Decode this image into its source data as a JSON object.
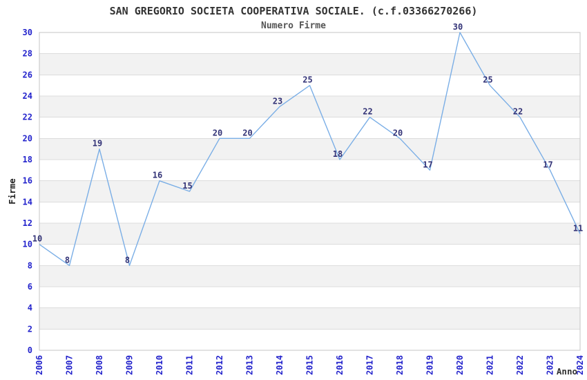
{
  "chart_data": {
    "type": "line",
    "title": "SAN GREGORIO SOCIETA COOPERATIVA SOCIALE. (c.f.03366270266)",
    "subtitle": "Numero Firme",
    "xlabel": "Anno",
    "ylabel": "Firme",
    "x": [
      "2006",
      "2007",
      "2008",
      "2009",
      "2010",
      "2011",
      "2012",
      "2013",
      "2014",
      "2015",
      "2016",
      "2017",
      "2018",
      "2019",
      "2020",
      "2021",
      "2022",
      "2023",
      "2024"
    ],
    "values": [
      10,
      8,
      19,
      8,
      16,
      15,
      20,
      20,
      23,
      25,
      18,
      22,
      20,
      17,
      30,
      25,
      22,
      17,
      11
    ],
    "point_labels": [
      "10",
      "8",
      "19",
      "8",
      "16",
      "15",
      "20",
      "20",
      "23",
      "25",
      "18",
      "22",
      "20",
      "17",
      "30",
      "25",
      "22",
      "17",
      "11"
    ],
    "ylim": [
      0,
      30
    ],
    "ytick_step": 2,
    "grid": true,
    "legend": "none",
    "band_background": true,
    "colors": {
      "line": "#7aaee6",
      "tick_label": "#2323cc",
      "point_label": "#333377",
      "title": "#333333",
      "subtitle": "#555555",
      "axis_label": "#222222",
      "band_fill": "#f2f2f2",
      "grid_line": "#dcdcdc",
      "plot_border": "#c4c4c4",
      "background": "#ffffff"
    }
  }
}
